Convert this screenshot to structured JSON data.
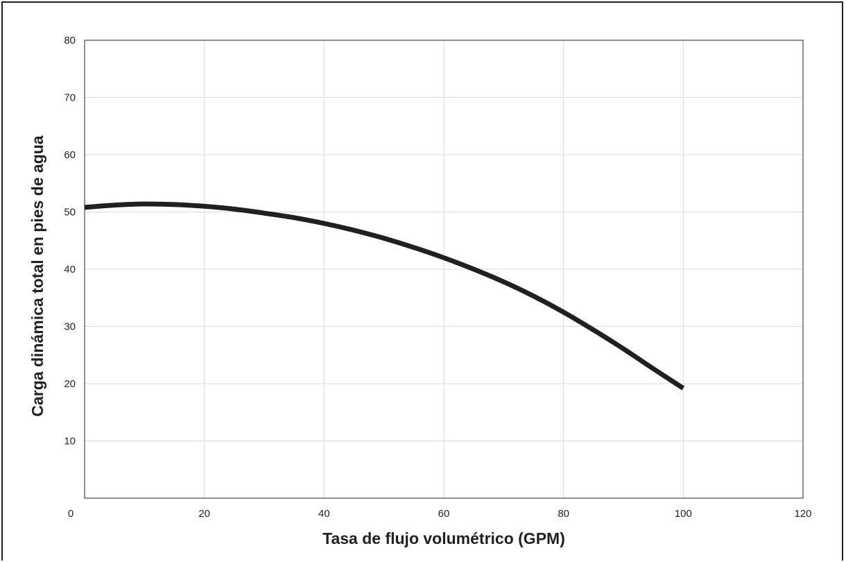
{
  "chart_data": {
    "type": "line",
    "title": "",
    "xlabel": "Tasa de flujo volumétrico (GPM)",
    "ylabel": "Carga dinámica total en pies de agua",
    "xlim": [
      0,
      120
    ],
    "ylim": [
      0,
      80
    ],
    "x_ticks": [
      0,
      20,
      40,
      60,
      80,
      100,
      120
    ],
    "y_ticks": [
      0,
      10,
      20,
      30,
      40,
      50,
      60,
      70,
      80
    ],
    "x_tick_labels": [
      "0",
      "20",
      "40",
      "60",
      "80",
      "100",
      "120"
    ],
    "y_tick_labels": [
      "0",
      "10",
      "20",
      "30",
      "40",
      "50",
      "60",
      "70",
      "80"
    ],
    "grid": true,
    "legend": "none",
    "line_color": "#231f20",
    "series": [
      {
        "x": [
          0,
          5,
          10,
          15,
          20,
          25,
          30,
          35,
          40,
          45,
          50,
          55,
          60,
          65,
          70,
          75,
          80,
          85,
          90,
          95,
          100
        ],
        "values": [
          50.8,
          51.2,
          51.4,
          51.3,
          51.0,
          50.5,
          49.8,
          49.0,
          48.0,
          46.8,
          45.4,
          43.8,
          42.0,
          40.0,
          37.8,
          35.3,
          32.5,
          29.4,
          26.1,
          22.6,
          19.2
        ]
      }
    ]
  }
}
